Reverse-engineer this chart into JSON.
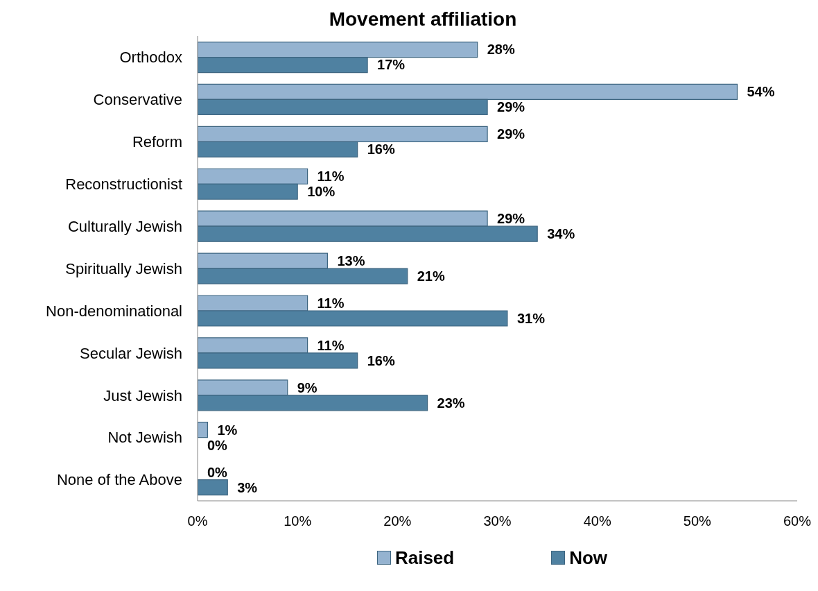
{
  "chart_data": {
    "type": "bar",
    "orientation": "horizontal",
    "title": "Movement affiliation",
    "categories": [
      "Orthodox",
      "Conservative",
      "Reform",
      "Reconstructionist",
      "Culturally Jewish",
      "Spiritually Jewish",
      "Non-denominational",
      "Secular Jewish",
      "Just Jewish",
      "Not Jewish",
      "None of the Above"
    ],
    "series": [
      {
        "name": "Raised",
        "color": "#95b3d0",
        "values": [
          28,
          54,
          29,
          11,
          29,
          13,
          11,
          11,
          9,
          1,
          0
        ],
        "value_labels": [
          "28%",
          "54%",
          "29%",
          "11%",
          "29%",
          "13%",
          "11%",
          "11%",
          "9%",
          "1%",
          "0%"
        ]
      },
      {
        "name": "Now",
        "color": "#4f81a1",
        "values": [
          17,
          29,
          16,
          10,
          34,
          21,
          31,
          16,
          23,
          0,
          3
        ],
        "value_labels": [
          "17%",
          "29%",
          "16%",
          "10%",
          "34%",
          "21%",
          "31%",
          "16%",
          "23%",
          "0%",
          "3%"
        ]
      }
    ],
    "xlim": [
      0,
      60
    ],
    "xticks": [
      {
        "value": 0,
        "label": "0%"
      },
      {
        "value": 10,
        "label": "10%"
      },
      {
        "value": 20,
        "label": "20%"
      },
      {
        "value": 30,
        "label": "30%"
      },
      {
        "value": 40,
        "label": "40%"
      },
      {
        "value": 50,
        "label": "50%"
      },
      {
        "value": 60,
        "label": "60%"
      }
    ],
    "grid": false,
    "legend": "bottom"
  }
}
